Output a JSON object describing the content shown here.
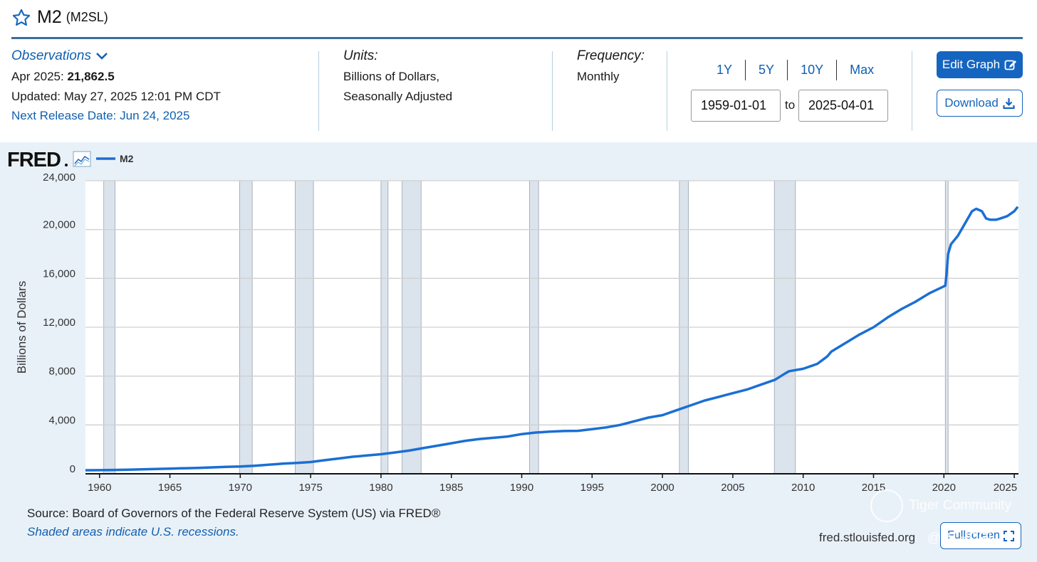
{
  "header": {
    "title": "M2",
    "series_id": "(M2SL)"
  },
  "observations": {
    "link_label": "Observations",
    "latest_prefix": "Apr 2025:",
    "latest_value": "21,862.5",
    "updated": "Updated: May 27, 2025 12:01 PM CDT",
    "next_release": "Next Release Date: Jun 24, 2025"
  },
  "units": {
    "label": "Units:",
    "line1": "Billions of Dollars,",
    "line2": "Seasonally Adjusted"
  },
  "frequency": {
    "label": "Frequency:",
    "value": "Monthly"
  },
  "range": {
    "buttons": [
      "1Y",
      "5Y",
      "10Y",
      "Max"
    ],
    "start": "1959-01-01",
    "to_label": "to",
    "end": "2025-04-01"
  },
  "actions": {
    "edit_label": "Edit Graph",
    "download_label": "Download",
    "fullscreen_label": "Fullscreen"
  },
  "footer": {
    "source": "Source: Board of Governors of the Federal Reserve System (US) via FRED®",
    "shaded_note": "Shaded areas indicate U.S. recessions.",
    "url": "fred.stlouisfed.org"
  },
  "watermark": {
    "brand": "Tiger Community",
    "user": "@RTHDRL"
  },
  "colors": {
    "line": "#1a6fd4",
    "recession": "#dbe3ec",
    "accent": "#1565c0"
  },
  "chart_data": {
    "type": "line",
    "brand": "FRED",
    "series": [
      {
        "name": "M2",
        "x": [
          1959,
          1960,
          1961,
          1962,
          1963,
          1964,
          1965,
          1966,
          1967,
          1968,
          1969,
          1970,
          1971,
          1972,
          1973,
          1974,
          1975,
          1976,
          1977,
          1978,
          1979,
          1980,
          1981,
          1982,
          1983,
          1984,
          1985,
          1986,
          1987,
          1988,
          1989,
          1990,
          1991,
          1992,
          1993,
          1994,
          1995,
          1996,
          1997,
          1998,
          1999,
          2000,
          2001,
          2002,
          2003,
          2004,
          2005,
          2006,
          2007,
          2008,
          2008.7,
          2009,
          2010,
          2011,
          2011.7,
          2012,
          2013,
          2014,
          2015,
          2016,
          2017,
          2018,
          2019,
          2020.1,
          2020.2,
          2020.3,
          2020.5,
          2021,
          2021.5,
          2022,
          2022.3,
          2022.7,
          2023,
          2023.3,
          2023.7,
          2024,
          2024.5,
          2025,
          2025.25
        ],
        "values": [
          290,
          300,
          315,
          335,
          365,
          395,
          425,
          455,
          485,
          525,
          570,
          600,
          660,
          740,
          830,
          890,
          960,
          1110,
          1250,
          1400,
          1500,
          1600,
          1750,
          1900,
          2100,
          2300,
          2500,
          2700,
          2850,
          2950,
          3050,
          3250,
          3380,
          3450,
          3500,
          3520,
          3650,
          3800,
          4000,
          4300,
          4600,
          4800,
          5200,
          5600,
          6000,
          6300,
          6600,
          6900,
          7300,
          7700,
          8200,
          8400,
          8600,
          9000,
          9600,
          10000,
          10700,
          11400,
          12000,
          12800,
          13500,
          14100,
          14800,
          15400,
          16500,
          18000,
          18800,
          19500,
          20500,
          21500,
          21700,
          21500,
          20900,
          20800,
          20800,
          20900,
          21100,
          21500,
          21862.5
        ]
      }
    ],
    "recessions": [
      [
        1960.3,
        1961.1
      ],
      [
        1969.95,
        1970.85
      ],
      [
        1973.9,
        1975.2
      ],
      [
        1980.0,
        1980.5
      ],
      [
        1981.5,
        1982.85
      ],
      [
        1990.55,
        1991.2
      ],
      [
        2001.2,
        2001.85
      ],
      [
        2007.95,
        2009.45
      ],
      [
        2020.1,
        2020.3
      ]
    ],
    "xlim": [
      1959,
      2025.3
    ],
    "ylim": [
      0,
      24000
    ],
    "yticks": [
      0,
      4000,
      8000,
      12000,
      16000,
      20000,
      24000
    ],
    "ytick_labels": [
      "0",
      "4,000",
      "8,000",
      "12,000",
      "16,000",
      "20,000",
      "24,000"
    ],
    "xticks": [
      1960,
      1965,
      1970,
      1975,
      1980,
      1985,
      1990,
      1995,
      2000,
      2005,
      2010,
      2015,
      2020,
      2025
    ],
    "xtick_labels": [
      "1960",
      "1965",
      "1970",
      "1975",
      "1980",
      "1985",
      "1990",
      "1995",
      "2000",
      "2005",
      "2010",
      "2015",
      "2020",
      "2025"
    ],
    "ylabel": "Billions of Dollars",
    "xlabel": "",
    "legend": "top-left"
  }
}
